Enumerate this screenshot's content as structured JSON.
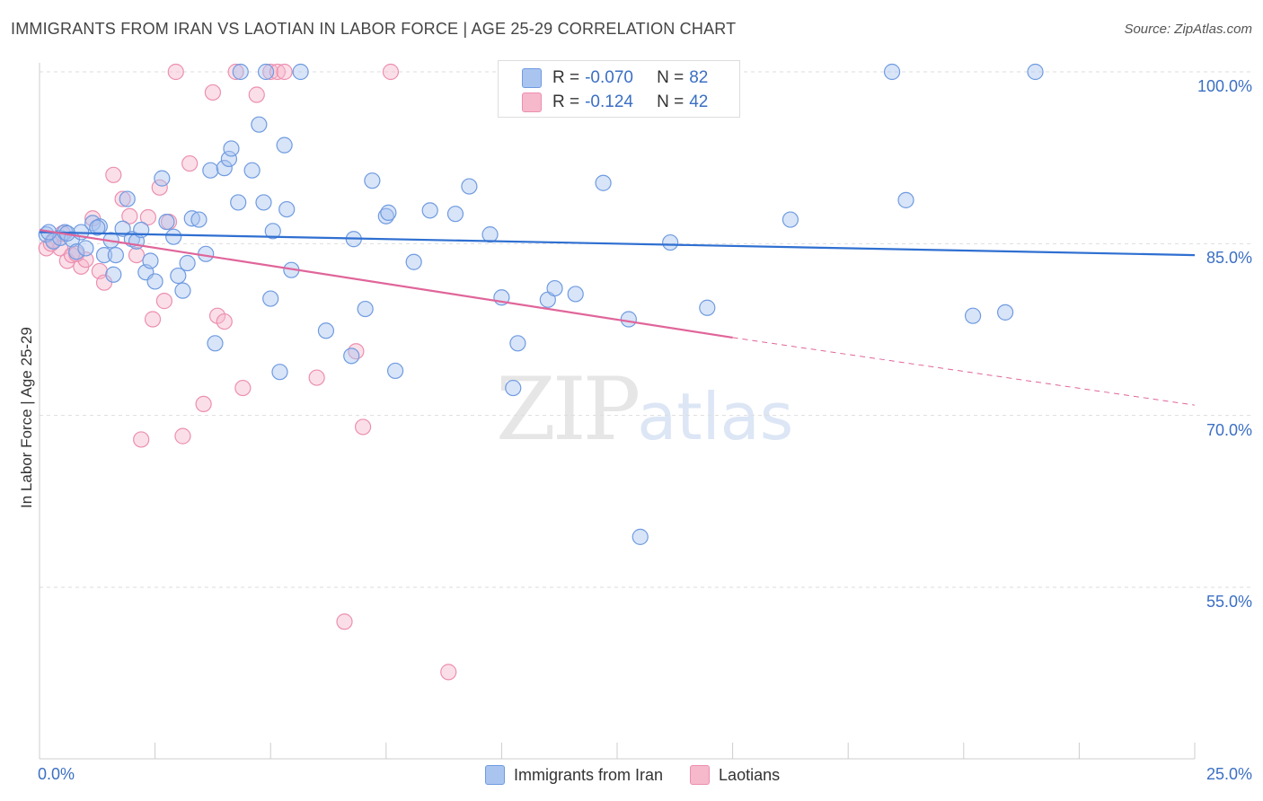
{
  "title": "IMMIGRANTS FROM IRAN VS LAOTIAN IN LABOR FORCE | AGE 25-29 CORRELATION CHART",
  "source": "Source: ZipAtlas.com",
  "watermark": {
    "zip": "ZIP",
    "atlas": "atlas"
  },
  "legend_top": {
    "rows": [
      {
        "r_label": "R =",
        "r_value": "-0.070",
        "n_label": "N =",
        "n_value": "82",
        "color": "#a9c4ef"
      },
      {
        "r_label": "R =",
        "r_value": "-0.124",
        "n_label": "N =",
        "n_value": "42",
        "color": "#f6b8cb"
      }
    ]
  },
  "legend_bottom": {
    "items": [
      {
        "label": "Immigrants from Iran",
        "color": "#a9c4ef"
      },
      {
        "label": "Laotians",
        "color": "#f6b8cb"
      }
    ]
  },
  "chart_data": {
    "type": "scatter",
    "title": "IMMIGRANTS FROM IRAN VS LAOTIAN IN LABOR FORCE | AGE 25-29 CORRELATION CHART",
    "xlabel": "",
    "ylabel": "In Labor Force | Age 25-29",
    "xlim": [
      0,
      25
    ],
    "ylim": [
      40,
      102
    ],
    "x_tick_labels": [
      "0.0%",
      "25.0%"
    ],
    "y_ticks": [
      55,
      70,
      85,
      100
    ],
    "y_tick_labels": [
      "55.0%",
      "70.0%",
      "85.0%",
      "100.0%"
    ],
    "grid": true,
    "series": [
      {
        "name": "Immigrants from Iran",
        "color": "#6f9be0",
        "fill": "#a9c4ef",
        "trend": {
          "x": [
            0,
            25
          ],
          "y": [
            86.0,
            84.0
          ],
          "color": "#2f6fd1"
        },
        "points": [
          [
            0.15,
            85.8
          ],
          [
            0.3,
            85.2
          ],
          [
            0.45,
            85.5
          ],
          [
            0.55,
            86.0
          ],
          [
            0.7,
            85.4
          ],
          [
            0.8,
            84.3
          ],
          [
            0.9,
            86.0
          ],
          [
            1.0,
            84.6
          ],
          [
            1.15,
            86.8
          ],
          [
            1.3,
            86.5
          ],
          [
            1.4,
            84.0
          ],
          [
            1.55,
            85.3
          ],
          [
            1.6,
            82.3
          ],
          [
            1.65,
            84.0
          ],
          [
            1.8,
            86.3
          ],
          [
            1.9,
            88.9
          ],
          [
            2.0,
            85.4
          ],
          [
            2.1,
            85.2
          ],
          [
            2.2,
            86.2
          ],
          [
            2.3,
            82.5
          ],
          [
            2.4,
            83.5
          ],
          [
            2.5,
            81.7
          ],
          [
            2.65,
            90.7
          ],
          [
            2.75,
            86.9
          ],
          [
            2.9,
            85.6
          ],
          [
            3.0,
            82.2
          ],
          [
            3.1,
            80.9
          ],
          [
            3.2,
            83.3
          ],
          [
            3.3,
            87.2
          ],
          [
            3.45,
            87.1
          ],
          [
            3.6,
            84.1
          ],
          [
            3.7,
            91.4
          ],
          [
            3.8,
            76.3
          ],
          [
            4.0,
            91.6
          ],
          [
            4.1,
            92.4
          ],
          [
            4.15,
            93.3
          ],
          [
            4.3,
            88.6
          ],
          [
            4.35,
            100.0
          ],
          [
            4.6,
            91.4
          ],
          [
            4.75,
            95.4
          ],
          [
            4.85,
            88.6
          ],
          [
            4.9,
            100.0
          ],
          [
            5.0,
            80.2
          ],
          [
            5.05,
            86.1
          ],
          [
            5.2,
            73.8
          ],
          [
            5.3,
            93.6
          ],
          [
            5.35,
            88.0
          ],
          [
            5.45,
            82.7
          ],
          [
            5.65,
            100.0
          ],
          [
            6.2,
            77.4
          ],
          [
            6.75,
            75.2
          ],
          [
            6.8,
            85.4
          ],
          [
            7.05,
            79.3
          ],
          [
            7.2,
            90.5
          ],
          [
            7.5,
            87.4
          ],
          [
            7.55,
            87.7
          ],
          [
            7.7,
            73.9
          ],
          [
            8.1,
            83.4
          ],
          [
            8.45,
            87.9
          ],
          [
            9.0,
            87.6
          ],
          [
            9.3,
            90.0
          ],
          [
            9.75,
            85.8
          ],
          [
            10.0,
            80.3
          ],
          [
            10.25,
            72.4
          ],
          [
            10.35,
            76.3
          ],
          [
            11.0,
            80.1
          ],
          [
            11.15,
            81.1
          ],
          [
            11.6,
            80.6
          ],
          [
            12.2,
            90.3
          ],
          [
            12.75,
            78.4
          ],
          [
            13.0,
            59.4
          ],
          [
            13.65,
            85.1
          ],
          [
            14.45,
            79.4
          ],
          [
            16.25,
            87.1
          ],
          [
            18.45,
            100.0
          ],
          [
            18.75,
            88.8
          ],
          [
            20.2,
            78.7
          ],
          [
            20.9,
            79.0
          ],
          [
            21.55,
            100.0
          ],
          [
            0.2,
            86.0
          ],
          [
            0.6,
            85.9
          ],
          [
            1.25,
            86.4
          ]
        ]
      },
      {
        "name": "Laotians",
        "color": "#ec8fb0",
        "fill": "#f6b8cb",
        "trend": {
          "x": [
            0,
            15
          ],
          "y": [
            86.2,
            76.8
          ],
          "color": "#e0659a",
          "dash_x": [
            15,
            25
          ],
          "dash_y": [
            76.8,
            70.9
          ]
        },
        "points": [
          [
            0.15,
            84.6
          ],
          [
            0.3,
            85.3
          ],
          [
            0.45,
            84.6
          ],
          [
            0.5,
            85.9
          ],
          [
            0.6,
            83.5
          ],
          [
            0.7,
            84.0
          ],
          [
            0.9,
            83.0
          ],
          [
            1.0,
            83.6
          ],
          [
            1.15,
            87.2
          ],
          [
            1.3,
            82.6
          ],
          [
            1.4,
            81.6
          ],
          [
            1.6,
            91.0
          ],
          [
            1.8,
            88.9
          ],
          [
            1.95,
            87.4
          ],
          [
            2.1,
            84.0
          ],
          [
            2.2,
            67.9
          ],
          [
            2.35,
            87.3
          ],
          [
            2.45,
            78.4
          ],
          [
            2.6,
            89.9
          ],
          [
            2.7,
            80.0
          ],
          [
            2.8,
            86.9
          ],
          [
            2.95,
            100.0
          ],
          [
            3.1,
            68.2
          ],
          [
            3.25,
            92.0
          ],
          [
            3.55,
            71.0
          ],
          [
            3.75,
            98.2
          ],
          [
            3.85,
            78.7
          ],
          [
            4.0,
            78.2
          ],
          [
            4.25,
            100.0
          ],
          [
            4.4,
            72.4
          ],
          [
            4.7,
            98.0
          ],
          [
            5.0,
            100.0
          ],
          [
            5.15,
            100.0
          ],
          [
            5.3,
            100.0
          ],
          [
            6.0,
            73.3
          ],
          [
            6.6,
            52.0
          ],
          [
            6.85,
            75.6
          ],
          [
            7.0,
            69.0
          ],
          [
            7.6,
            100.0
          ],
          [
            8.85,
            47.6
          ],
          [
            0.25,
            85.0
          ],
          [
            0.8,
            84.1
          ]
        ]
      }
    ]
  }
}
